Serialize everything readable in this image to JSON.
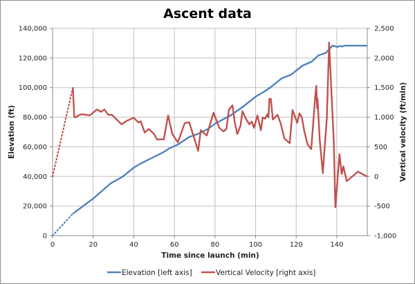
{
  "chart_data": {
    "type": "line",
    "title": "Ascent data",
    "xlabel": "Time since launch (min)",
    "ylabel_left": "Elevation (ft)",
    "ylabel_right": "Vertical velocity (ft/min)",
    "xlim": [
      0,
      155
    ],
    "ylim_left": [
      0,
      140000
    ],
    "ylim_right": [
      -1000,
      2500
    ],
    "x_ticks": [
      "0",
      "20",
      "40",
      "60",
      "80",
      "100",
      "120",
      "140"
    ],
    "x_tick_values": [
      0,
      20,
      40,
      60,
      80,
      100,
      120,
      140
    ],
    "y_left_ticks": [
      "0",
      "20,000",
      "40,000",
      "60,000",
      "80,000",
      "100,000",
      "120,000",
      "140,000"
    ],
    "y_left_tick_values": [
      0,
      20000,
      40000,
      60000,
      80000,
      100000,
      120000,
      140000
    ],
    "y_right_ticks": [
      "-1,000",
      "-500",
      "0",
      "500",
      "1,000",
      "1,500",
      "2,000",
      "2,500"
    ],
    "y_right_tick_values": [
      -1000,
      -500,
      0,
      500,
      1000,
      1500,
      2000,
      2500
    ],
    "grid": true,
    "legend_position": "bottom",
    "series": [
      {
        "name": "Elevation [left axis]",
        "axis": "left",
        "color": "#4f81bd",
        "dotted_segment": [
          [
            0,
            0
          ],
          [
            10,
            14800
          ]
        ],
        "points": [
          [
            10,
            14800
          ],
          [
            20,
            25000
          ],
          [
            28.7,
            35400
          ],
          [
            34.4,
            39700
          ],
          [
            40,
            45900
          ],
          [
            43.4,
            48700
          ],
          [
            54.8,
            56500
          ],
          [
            57.7,
            59100
          ],
          [
            61.7,
            61500
          ],
          [
            67.3,
            66600
          ],
          [
            71.9,
            68900
          ],
          [
            76.5,
            72000
          ],
          [
            79.9,
            75500
          ],
          [
            87.8,
            81300
          ],
          [
            93.5,
            86800
          ],
          [
            100.3,
            94100
          ],
          [
            103.8,
            96900
          ],
          [
            107.2,
            100000
          ],
          [
            112.9,
            106300
          ],
          [
            117.4,
            108600
          ],
          [
            123.1,
            114800
          ],
          [
            127.6,
            117500
          ],
          [
            131,
            121800
          ],
          [
            134.5,
            123300
          ],
          [
            137.9,
            128300
          ],
          [
            140.2,
            127500
          ],
          [
            141.5,
            128000
          ],
          [
            142.5,
            127700
          ],
          [
            144.1,
            128300
          ],
          [
            155,
            128300
          ]
        ]
      },
      {
        "name": "Vertical Velocity [right axis]",
        "axis": "right",
        "color": "#c0504d",
        "dotted_segment": [
          [
            0,
            0
          ],
          [
            10,
            1500
          ]
        ],
        "points": [
          [
            10,
            1500
          ],
          [
            10.7,
            1000
          ],
          [
            11.6,
            1000
          ],
          [
            12.7,
            1030
          ],
          [
            14.4,
            1050
          ],
          [
            18.4,
            1030
          ],
          [
            21.8,
            1130
          ],
          [
            23.9,
            1090
          ],
          [
            25.5,
            1130
          ],
          [
            27.5,
            1040
          ],
          [
            29.2,
            1040
          ],
          [
            34,
            880
          ],
          [
            36.6,
            940
          ],
          [
            40,
            990
          ],
          [
            42.3,
            910
          ],
          [
            43.4,
            930
          ],
          [
            45.4,
            740
          ],
          [
            47.4,
            800
          ],
          [
            49.9,
            720
          ],
          [
            51.4,
            625
          ],
          [
            54.8,
            625
          ],
          [
            56.9,
            1030
          ],
          [
            59,
            715
          ],
          [
            61.7,
            575
          ],
          [
            65.1,
            900
          ],
          [
            67.3,
            915
          ],
          [
            71.7,
            430
          ],
          [
            73,
            780
          ],
          [
            75.9,
            690
          ],
          [
            79.3,
            1075
          ],
          [
            82.1,
            820
          ],
          [
            84.2,
            760
          ],
          [
            85.6,
            800
          ],
          [
            86.9,
            1130
          ],
          [
            88.6,
            1200
          ],
          [
            89.8,
            900
          ],
          [
            91,
            715
          ],
          [
            92.6,
            860
          ],
          [
            93.5,
            1100
          ],
          [
            95.2,
            975
          ],
          [
            96.9,
            880
          ],
          [
            98.1,
            925
          ],
          [
            99.2,
            820
          ],
          [
            100.9,
            1030
          ],
          [
            102.6,
            780
          ],
          [
            103.5,
            995
          ],
          [
            104.7,
            975
          ],
          [
            105.8,
            1050
          ],
          [
            106.3,
            995
          ],
          [
            106.8,
            1310
          ],
          [
            107.5,
            1310
          ],
          [
            108.5,
            960
          ],
          [
            110.8,
            1040
          ],
          [
            112.3,
            900
          ],
          [
            114.2,
            640
          ],
          [
            116.8,
            560
          ],
          [
            118.2,
            1120
          ],
          [
            120.5,
            905
          ],
          [
            121.6,
            1065
          ],
          [
            122.8,
            995
          ],
          [
            124,
            760
          ],
          [
            125.6,
            540
          ],
          [
            127.4,
            460
          ],
          [
            129.4,
            1365
          ],
          [
            129.9,
            1530
          ],
          [
            130.3,
            1150
          ],
          [
            130.5,
            1310
          ],
          [
            131.6,
            610
          ],
          [
            133.1,
            55
          ],
          [
            135.1,
            995
          ],
          [
            136.2,
            2260
          ],
          [
            138.5,
            590
          ],
          [
            139.3,
            -520
          ],
          [
            141.3,
            375
          ],
          [
            142.4,
            40
          ],
          [
            143.2,
            170
          ],
          [
            144.9,
            -80
          ],
          [
            150.4,
            80
          ],
          [
            155,
            -5
          ]
        ]
      }
    ]
  }
}
